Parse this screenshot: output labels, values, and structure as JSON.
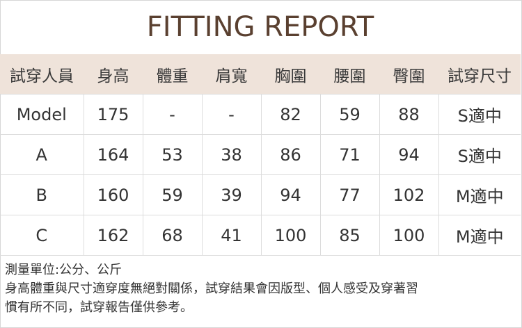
{
  "title": "FITTING REPORT",
  "colors": {
    "title": "#5a4030",
    "header_bg": "#efe3da"
  },
  "headers": [
    "試穿人員",
    "身高",
    "體重",
    "肩寬",
    "胸圍",
    "腰圍",
    "臀圍",
    "試穿尺寸"
  ],
  "rows": [
    [
      "Model",
      "175",
      "-",
      "-",
      "82",
      "59",
      "88",
      "S適中"
    ],
    [
      "A",
      "164",
      "53",
      "38",
      "86",
      "71",
      "94",
      "S適中"
    ],
    [
      "B",
      "160",
      "59",
      "39",
      "94",
      "77",
      "102",
      "M適中"
    ],
    [
      "C",
      "162",
      "68",
      "41",
      "100",
      "85",
      "100",
      "M適中"
    ]
  ],
  "notes": [
    "測量單位:公分、公斤",
    "身高體重與尺寸適穿度無絕對關係，試穿結果會因版型、個人感受及穿著習",
    "慣有所不同，試穿報告僅供參考。"
  ]
}
